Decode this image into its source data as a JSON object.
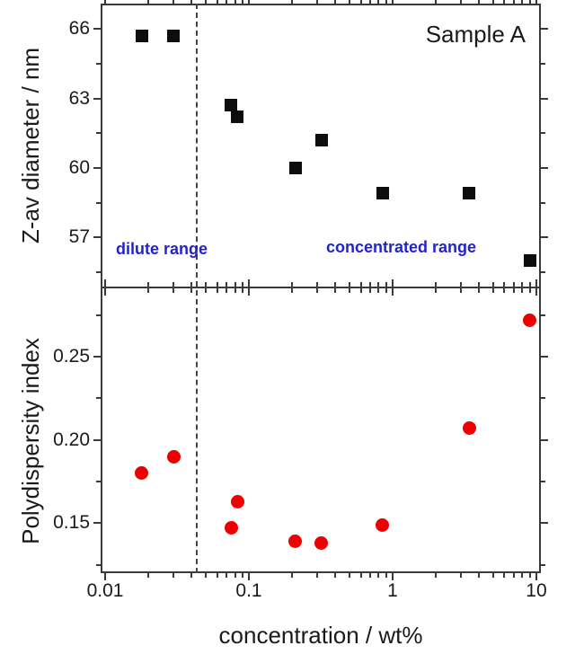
{
  "figure": {
    "sample_label": "Sample A",
    "xlabel": "concentration / wt%",
    "background": "#ffffff",
    "frame_color": "#3a3a3a",
    "text_color": "#1a1a1a",
    "xaxis": {
      "scale": "log",
      "ticks": [
        {
          "v": 0.01,
          "label": "0.01"
        },
        {
          "v": 0.1,
          "label": "0.1"
        },
        {
          "v": 1,
          "label": "1"
        },
        {
          "v": 10,
          "label": "10"
        }
      ],
      "minor_mantissas": [
        2,
        3,
        4,
        5,
        6,
        7,
        8,
        9
      ],
      "minor_decades": [
        -2,
        -1,
        0
      ]
    },
    "region_divider": {
      "x_wt_percent": 0.043,
      "style": "dashed",
      "color": "#444444",
      "left_label": "dilute range",
      "right_label": "concentrated range",
      "label_color": "#2323cc"
    }
  },
  "chart_data": [
    {
      "type": "scatter",
      "panel": "top",
      "title": "",
      "ylabel": "Z-av diameter / nm",
      "xlabel": "",
      "xscale": "log",
      "xlim": [
        0.0093,
        10.75
      ],
      "ylim": [
        54.8,
        67.1
      ],
      "yticks": [
        {
          "v": 57,
          "label": "57"
        },
        {
          "v": 60,
          "label": "60"
        },
        {
          "v": 63,
          "label": "63"
        },
        {
          "v": 66,
          "label": "66"
        }
      ],
      "yticks_minor": [
        55.5,
        58.5,
        61.5,
        64.5
      ],
      "grid": false,
      "legend": "none",
      "marker": {
        "shape": "square",
        "color": "#0d0d0d",
        "size": 14
      },
      "series": [
        {
          "name": "Z-av diameter / nm",
          "x": [
            0.018,
            0.03,
            0.075,
            0.083,
            0.21,
            0.32,
            0.85,
            3.4,
            9.0
          ],
          "y": [
            65.7,
            65.7,
            62.7,
            62.2,
            60.0,
            61.2,
            58.9,
            58.9,
            56.0
          ]
        }
      ]
    },
    {
      "type": "scatter",
      "panel": "bottom",
      "title": "",
      "ylabel": "Polydispersity index",
      "xlabel": "concentration / wt%",
      "xscale": "log",
      "xlim": [
        0.0093,
        10.75
      ],
      "ylim": [
        0.12,
        0.292
      ],
      "yticks": [
        {
          "v": 0.15,
          "label": "0.15"
        },
        {
          "v": 0.2,
          "label": "0.20"
        },
        {
          "v": 0.25,
          "label": "0.25"
        }
      ],
      "yticks_minor": [
        0.125,
        0.175,
        0.225,
        0.275
      ],
      "grid": false,
      "legend": "none",
      "marker": {
        "shape": "circle",
        "color": "#ee0000",
        "size": 15
      },
      "series": [
        {
          "name": "Polydispersity index",
          "x": [
            0.018,
            0.03,
            0.075,
            0.083,
            0.21,
            0.32,
            0.85,
            3.4,
            9.0
          ],
          "y": [
            0.18,
            0.19,
            0.147,
            0.163,
            0.139,
            0.138,
            0.149,
            0.207,
            0.272
          ]
        }
      ]
    }
  ]
}
